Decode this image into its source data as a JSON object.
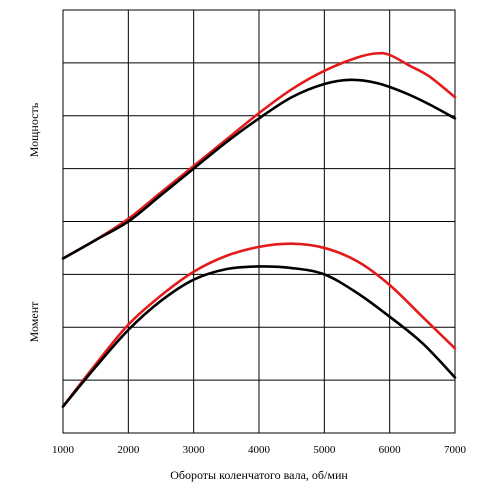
{
  "chart_data": {
    "type": "line",
    "xlabel": "Обороты коленчатого вала, об/мин",
    "left_labels": [
      "Мощность",
      "Момент"
    ],
    "x_ticks": [
      1000,
      2000,
      3000,
      4000,
      5000,
      6000,
      7000
    ],
    "xlim": [
      1000,
      7000
    ],
    "ylim": [
      0,
      8
    ],
    "y_ticks": [
      0,
      1,
      2,
      3,
      4,
      5,
      6,
      7,
      8
    ],
    "grid": true,
    "groups": [
      {
        "name": "Мощность",
        "series": [
          {
            "color": "#e31b1b",
            "x": [
              1000,
              1500,
              2000,
              2500,
              3000,
              3500,
              4000,
              4500,
              5000,
              5500,
              5800,
              6000,
              6300,
              6600,
              7000
            ],
            "y": [
              3.3,
              3.65,
              4.05,
              4.55,
              5.05,
              5.55,
              6.05,
              6.5,
              6.85,
              7.1,
              7.18,
              7.15,
              6.95,
              6.75,
              6.35
            ]
          },
          {
            "color": "#000000",
            "x": [
              1000,
              1500,
              2000,
              2500,
              3000,
              3500,
              4000,
              4500,
              5000,
              5400,
              5800,
              6200,
              6600,
              7000
            ],
            "y": [
              3.3,
              3.65,
              4.0,
              4.5,
              5.0,
              5.5,
              5.95,
              6.35,
              6.6,
              6.68,
              6.62,
              6.45,
              6.22,
              5.95
            ]
          }
        ]
      },
      {
        "name": "Момент",
        "series": [
          {
            "color": "#e31b1b",
            "x": [
              1000,
              1500,
              2000,
              2500,
              3000,
              3500,
              4000,
              4500,
              5000,
              5500,
              6000,
              6500,
              7000
            ],
            "y": [
              0.5,
              1.3,
              2.05,
              2.6,
              3.05,
              3.35,
              3.52,
              3.58,
              3.5,
              3.25,
              2.8,
              2.2,
              1.6
            ]
          },
          {
            "color": "#000000",
            "x": [
              1000,
              1500,
              2000,
              2500,
              3000,
              3500,
              4000,
              4500,
              5000,
              5500,
              6000,
              6500,
              7000
            ],
            "y": [
              0.5,
              1.25,
              1.95,
              2.5,
              2.9,
              3.1,
              3.15,
              3.12,
              3.0,
              2.65,
              2.2,
              1.7,
              1.05
            ]
          }
        ]
      }
    ]
  }
}
